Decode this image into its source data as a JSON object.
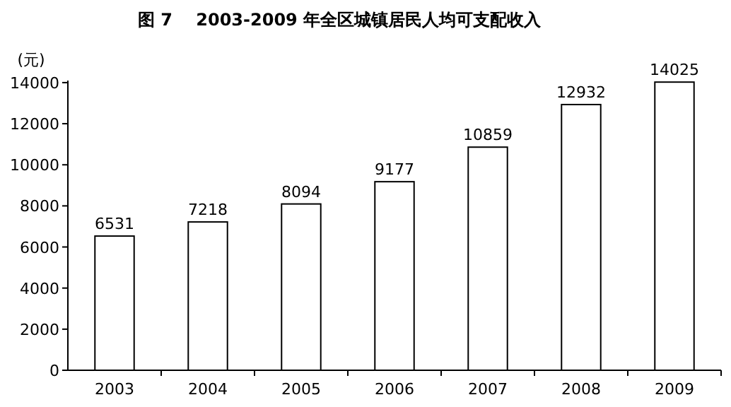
{
  "chart_data": {
    "type": "bar",
    "title": "图 7    2003-2009 年全区城镇居民人均可支配收入",
    "ylabel": "(元)",
    "categories": [
      "2003",
      "2004",
      "2005",
      "2006",
      "2007",
      "2008",
      "2009"
    ],
    "values": [
      6531,
      7218,
      8094,
      9177,
      10859,
      12932,
      14025
    ],
    "color": "#ffffff",
    "ylim": [
      0,
      14100
    ],
    "yticks": [
      0,
      2000,
      4000,
      6000,
      8000,
      10000,
      12000,
      14000
    ],
    "data_labels": true
  }
}
